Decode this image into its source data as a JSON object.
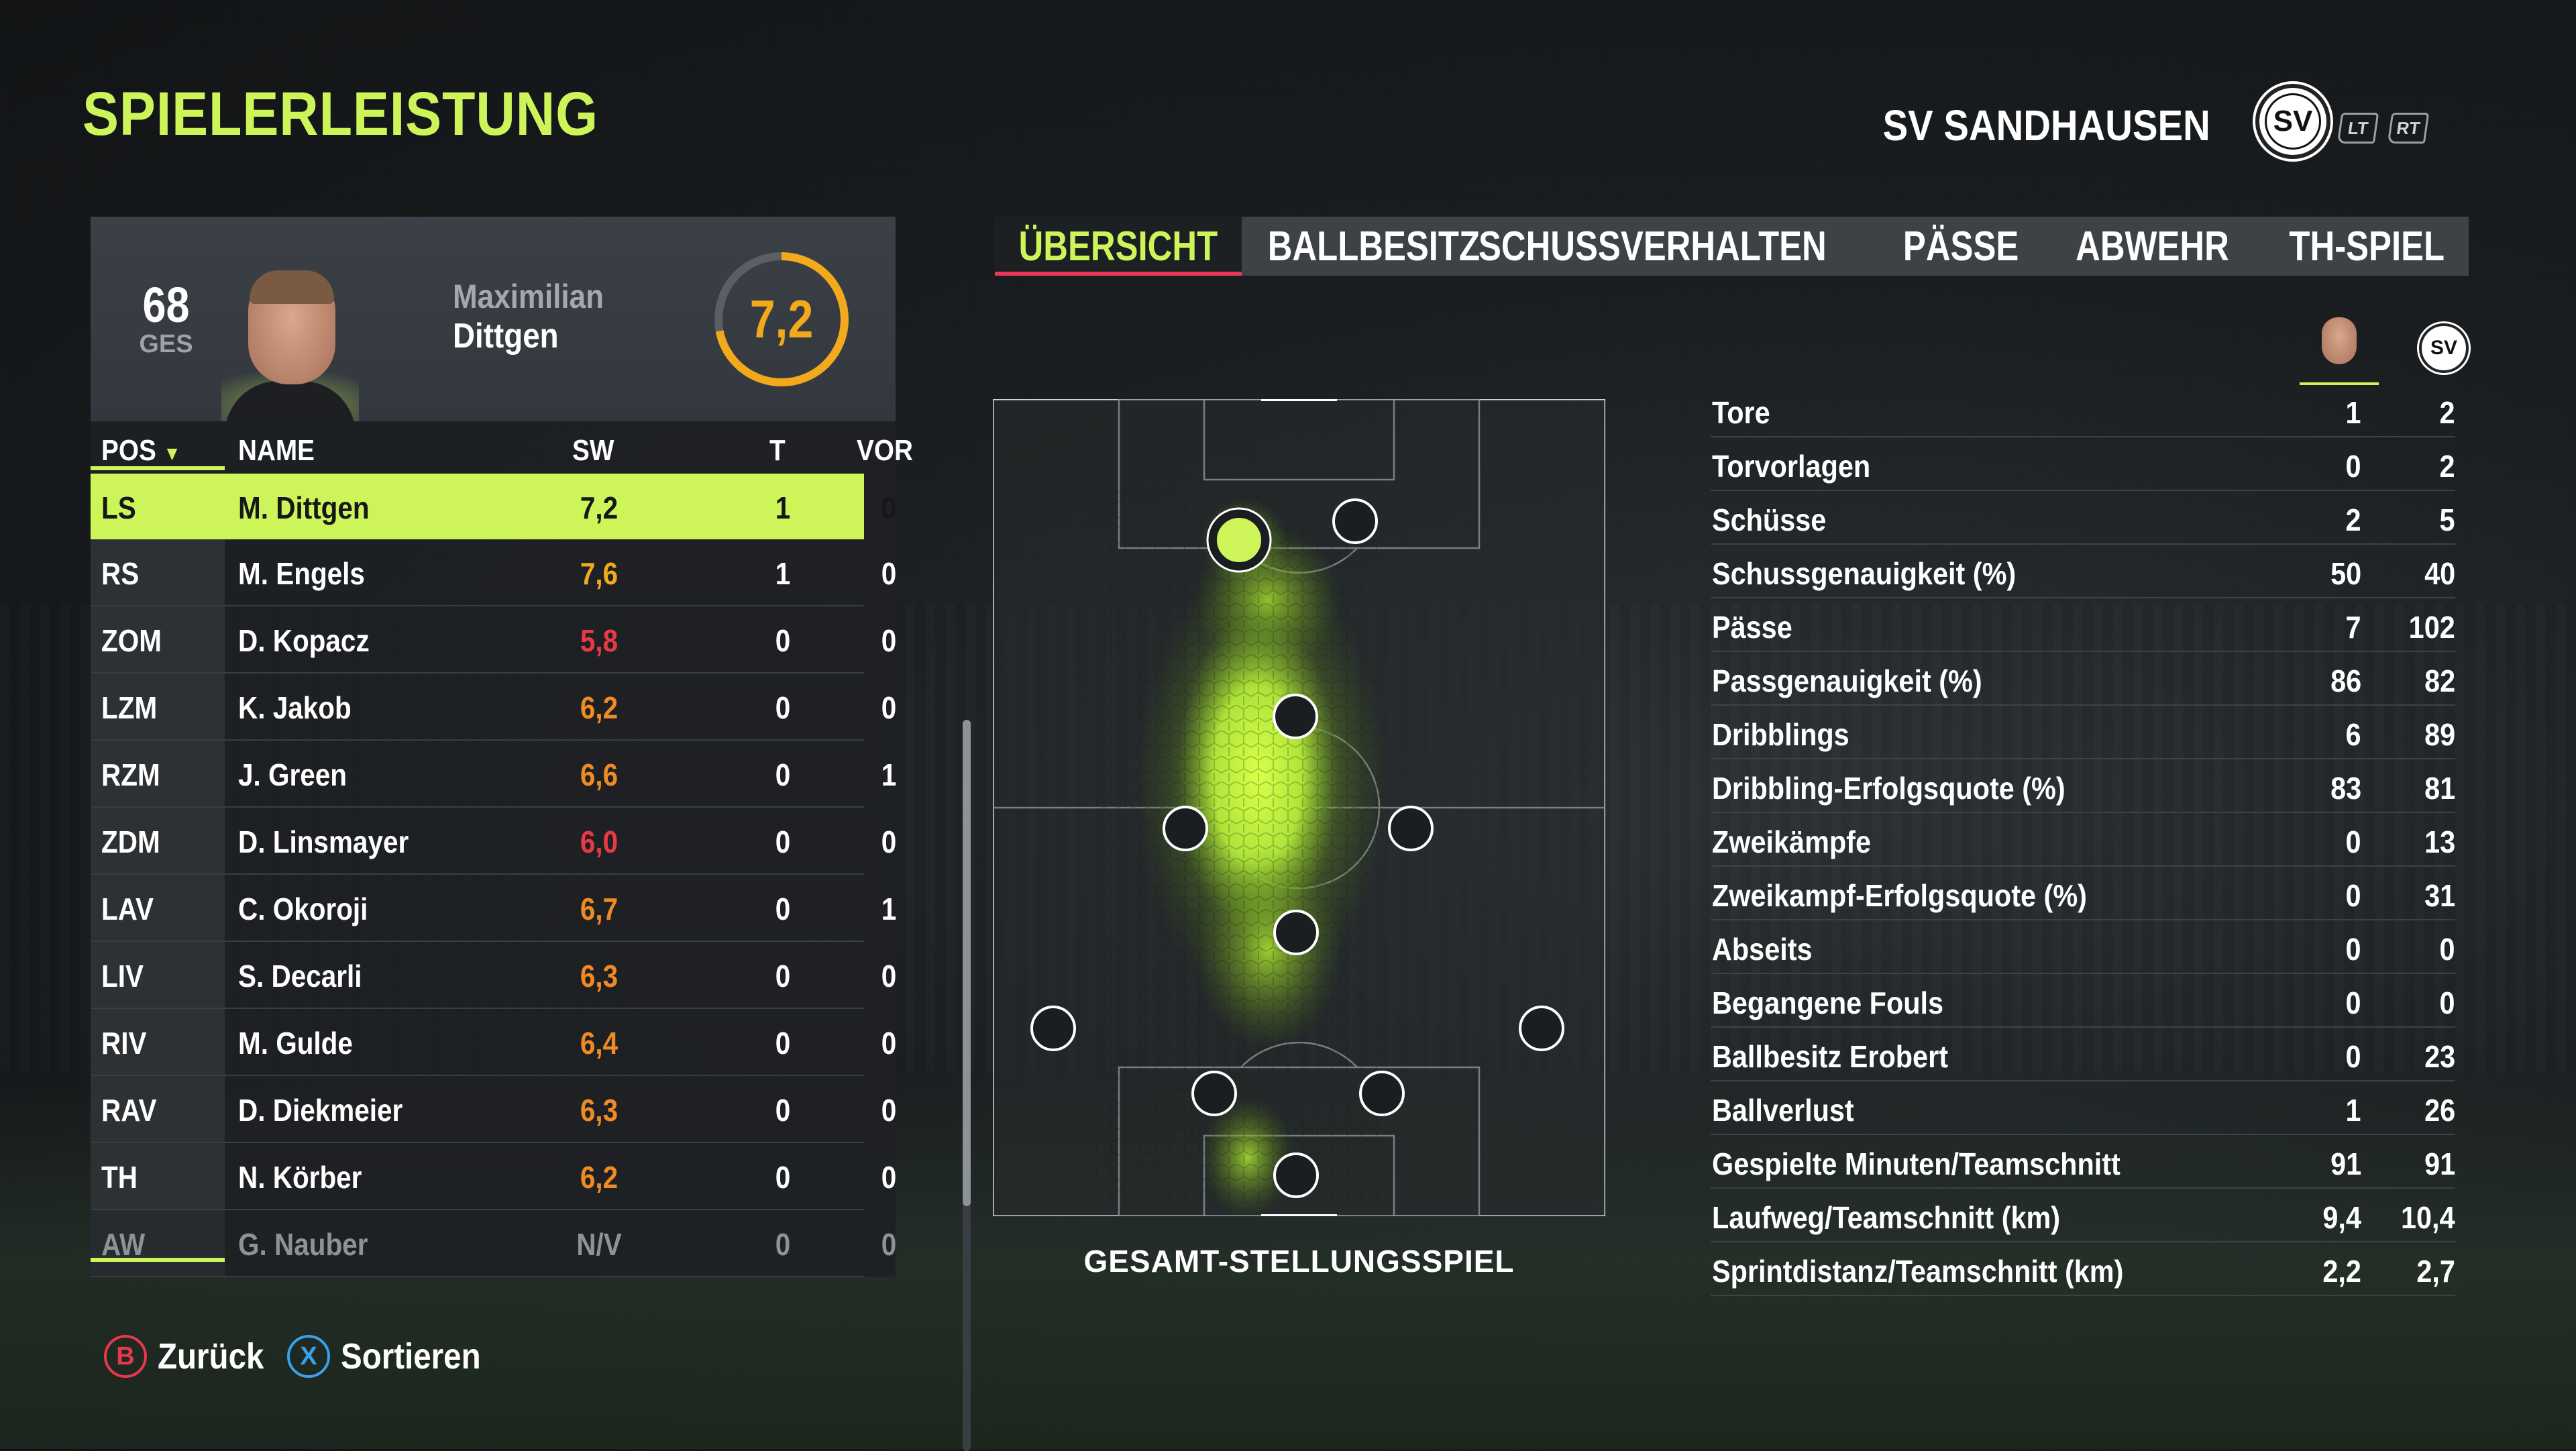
{
  "header": {
    "title": "SPIELERLEISTUNG",
    "club": "SV SANDHAUSEN",
    "club_logo_text": "SV",
    "lt": "LT",
    "rt": "RT"
  },
  "player": {
    "ovr": "68",
    "ovr_label": "GES",
    "first_name": "Maximilian",
    "last_name": "Dittgen",
    "rating": "7,2",
    "rating_value": 7.2
  },
  "table": {
    "headers": {
      "pos": "POS",
      "name": "NAME",
      "sw": "SW",
      "t": "T",
      "vor": "VOR"
    },
    "rows": [
      {
        "pos": "LS",
        "name": "M. Dittgen",
        "sw": "7,2",
        "t": "1",
        "vor": "0",
        "sw_color": "#151719",
        "selected": true
      },
      {
        "pos": "RS",
        "name": "M. Engels",
        "sw": "7,6",
        "t": "1",
        "vor": "0",
        "sw_color": "#f2a91b"
      },
      {
        "pos": "ZOM",
        "name": "D. Kopacz",
        "sw": "5,8",
        "t": "0",
        "vor": "0",
        "sw_color": "#e83a45"
      },
      {
        "pos": "LZM",
        "name": "K. Jakob",
        "sw": "6,2",
        "t": "0",
        "vor": "0",
        "sw_color": "#f08a24"
      },
      {
        "pos": "RZM",
        "name": "J. Green",
        "sw": "6,6",
        "t": "0",
        "vor": "1",
        "sw_color": "#f08a24"
      },
      {
        "pos": "ZDM",
        "name": "D. Linsmayer",
        "sw": "6,0",
        "t": "0",
        "vor": "0",
        "sw_color": "#e83a45"
      },
      {
        "pos": "LAV",
        "name": "C. Okoroji",
        "sw": "6,7",
        "t": "0",
        "vor": "1",
        "sw_color": "#f08a24"
      },
      {
        "pos": "LIV",
        "name": "S. Decarli",
        "sw": "6,3",
        "t": "0",
        "vor": "0",
        "sw_color": "#f08a24"
      },
      {
        "pos": "RIV",
        "name": "M. Gulde",
        "sw": "6,4",
        "t": "0",
        "vor": "0",
        "sw_color": "#f08a24"
      },
      {
        "pos": "RAV",
        "name": "D. Diekmeier",
        "sw": "6,3",
        "t": "0",
        "vor": "0",
        "sw_color": "#f08a24"
      },
      {
        "pos": "TH",
        "name": "N. Körber",
        "sw": "6,2",
        "t": "0",
        "vor": "0",
        "sw_color": "#f08a24"
      },
      {
        "pos": "AW",
        "name": "G. Nauber",
        "sw": "N/V",
        "t": "0",
        "vor": "0",
        "sw_color": "#8d9296",
        "bench": true
      }
    ]
  },
  "tabs": [
    "ÜBERSICHT",
    "BALLBESITZ",
    "SCHUSSVERHALTEN",
    "PÄSSE",
    "ABWEHR",
    "TH-SPIEL"
  ],
  "active_tab": 0,
  "pitch": {
    "label": "GESAMT-STELLUNGSSPIEL"
  },
  "stats": [
    {
      "label": "Tore",
      "player": "1",
      "club": "2"
    },
    {
      "label": "Torvorlagen",
      "player": "0",
      "club": "2"
    },
    {
      "label": "Schüsse",
      "player": "2",
      "club": "5"
    },
    {
      "label": "Schussgenauigkeit (%)",
      "player": "50",
      "club": "40"
    },
    {
      "label": "Pässe",
      "player": "7",
      "club": "102"
    },
    {
      "label": "Passgenauigkeit (%)",
      "player": "86",
      "club": "82"
    },
    {
      "label": "Dribblings",
      "player": "6",
      "club": "89"
    },
    {
      "label": "Dribbling-Erfolgsquote (%)",
      "player": "83",
      "club": "81"
    },
    {
      "label": "Zweikämpfe",
      "player": "0",
      "club": "13"
    },
    {
      "label": "Zweikampf-Erfolgsquote (%)",
      "player": "0",
      "club": "31"
    },
    {
      "label": "Abseits",
      "player": "0",
      "club": "0"
    },
    {
      "label": "Begangene Fouls",
      "player": "0",
      "club": "0"
    },
    {
      "label": "Ballbesitz Erobert",
      "player": "0",
      "club": "23"
    },
    {
      "label": "Ballverlust",
      "player": "1",
      "club": "26"
    },
    {
      "label": "Gespielte Minuten/Teamschnitt",
      "player": "91",
      "club": "91"
    },
    {
      "label": "Laufweg/Teamschnitt (km)",
      "player": "9,4",
      "club": "10,4"
    },
    {
      "label": "Sprintdistanz/Teamschnitt (km)",
      "player": "2,2",
      "club": "2,7"
    }
  ],
  "buttons": {
    "back": {
      "key": "B",
      "label": "Zurück",
      "color": "#e8384a"
    },
    "sort": {
      "key": "X",
      "label": "Sortieren",
      "color": "#3aa0e8"
    }
  },
  "colors": {
    "accent": "#cdf55a",
    "rating_ring": "#f2a91b",
    "tab_underline": "#e8385a"
  }
}
